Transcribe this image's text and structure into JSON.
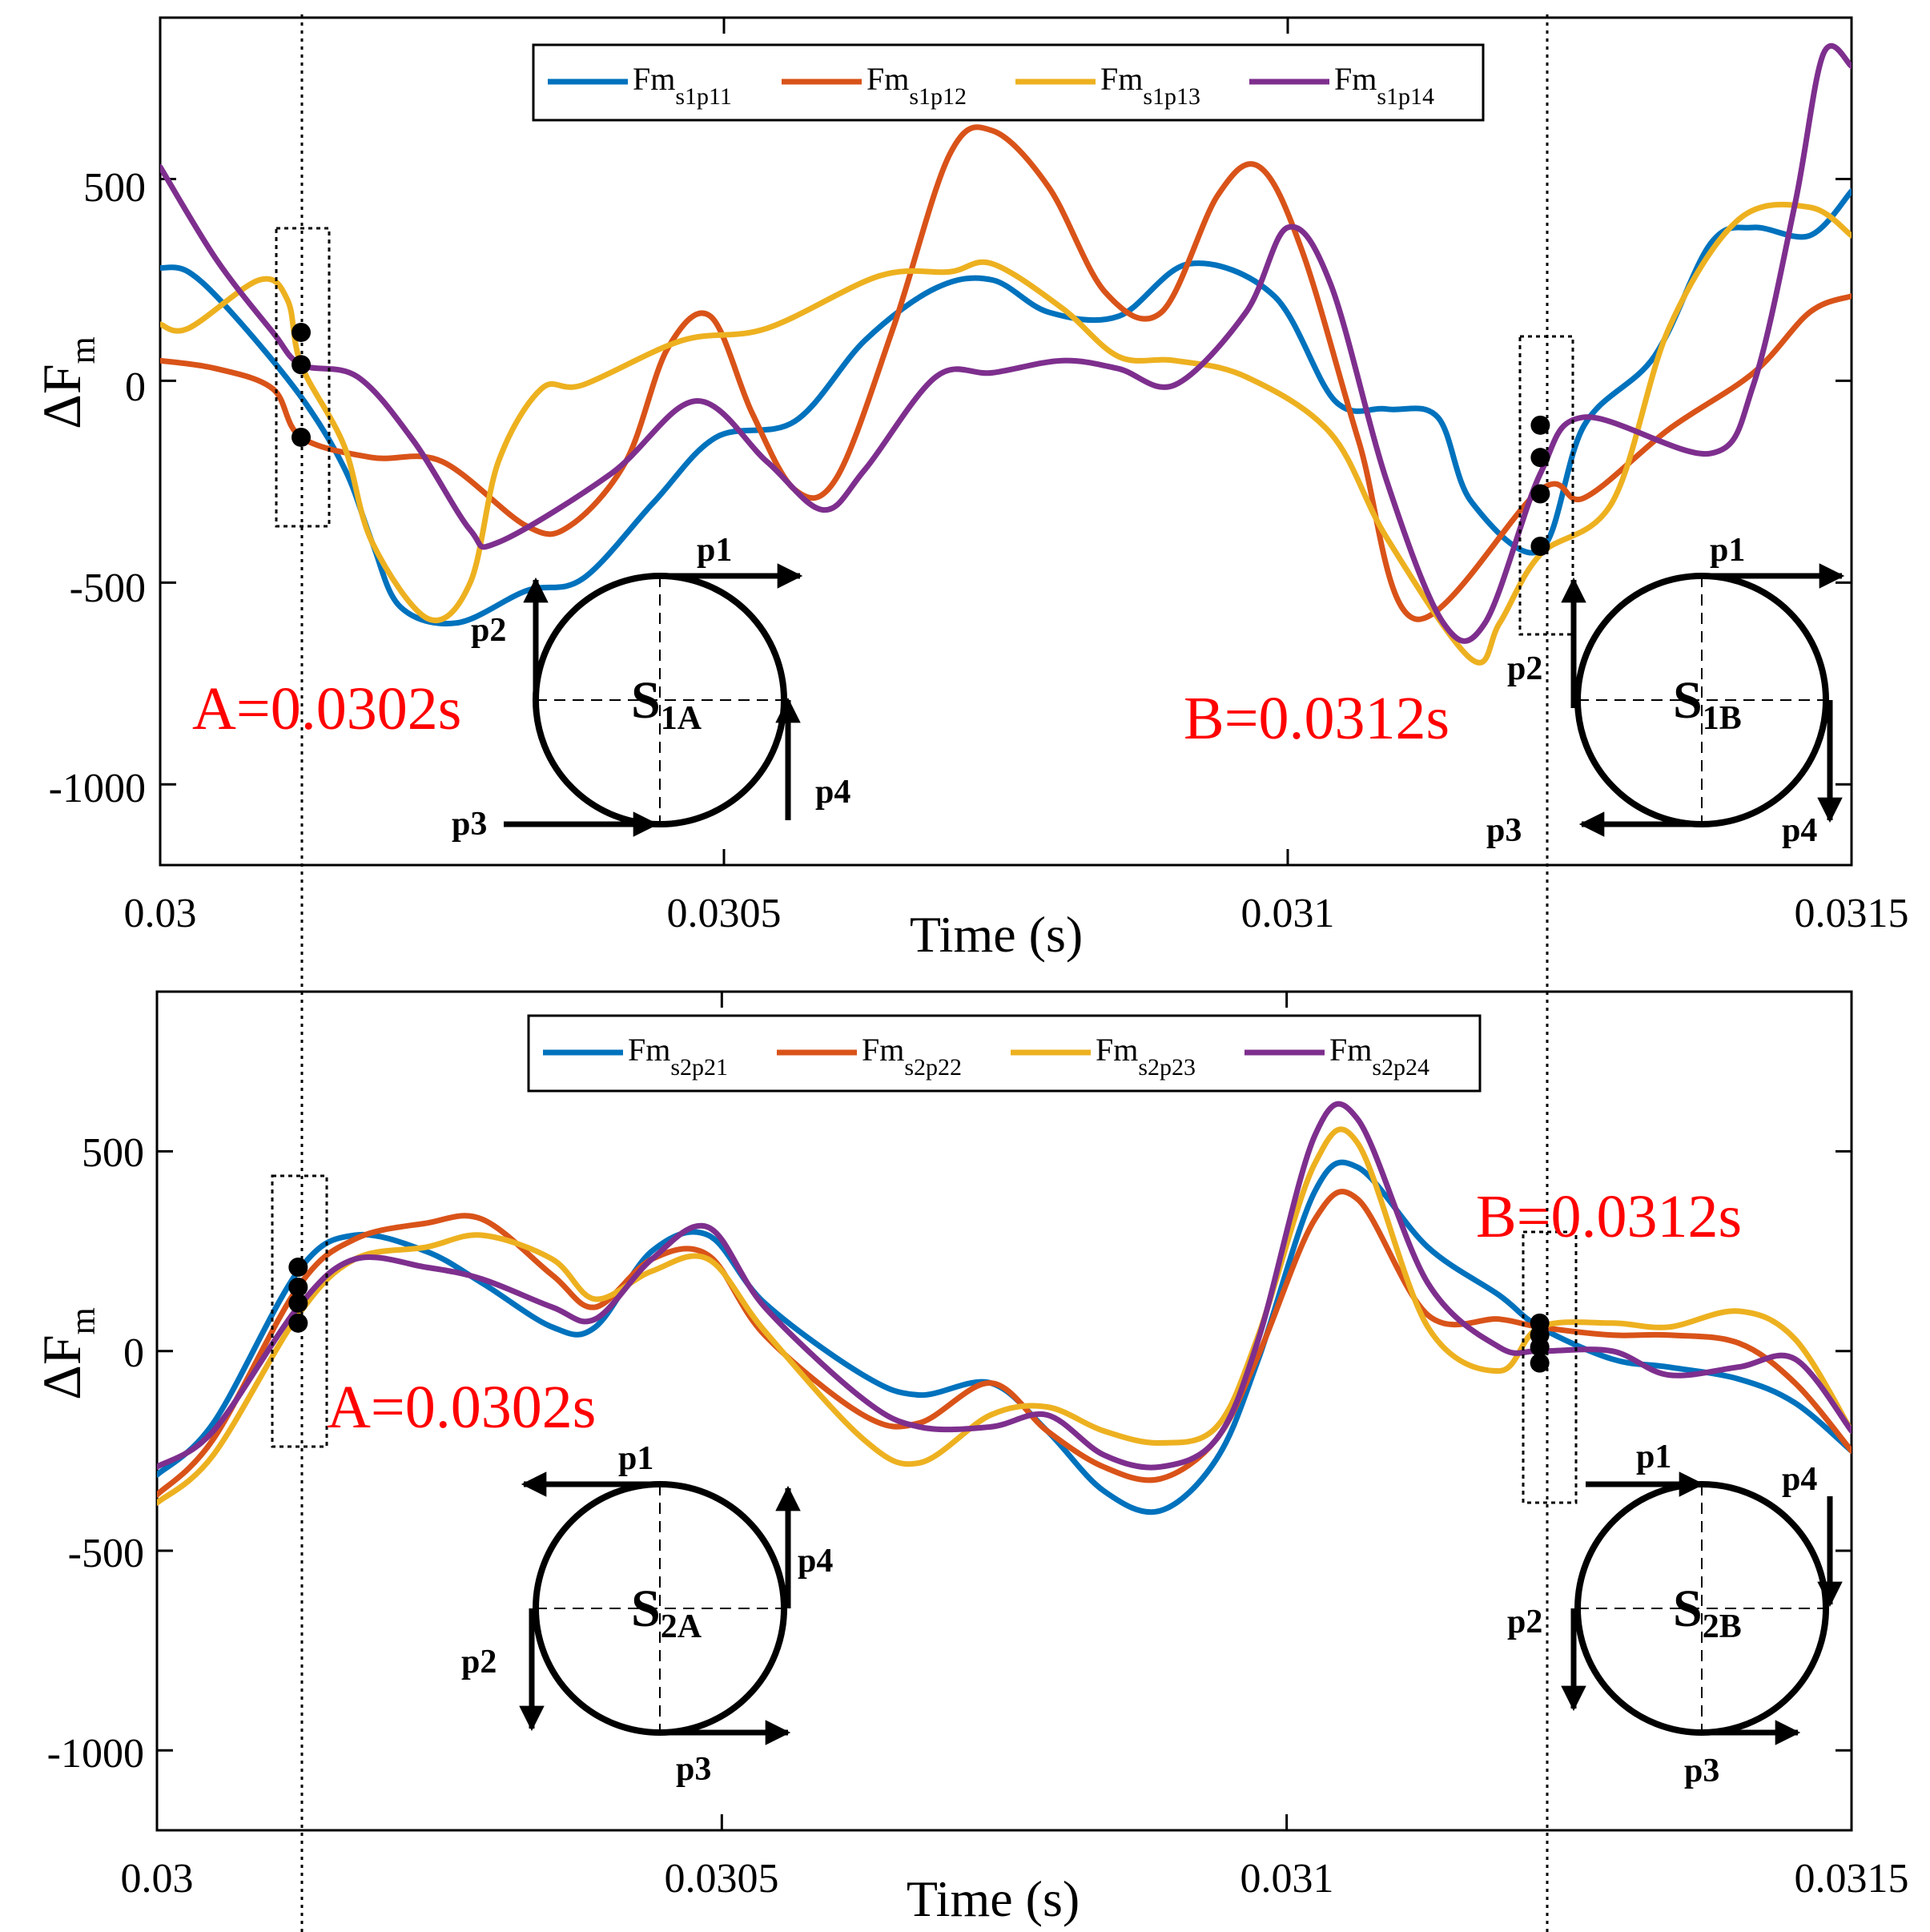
{
  "chart_data": [
    {
      "type": "line",
      "id": "top",
      "xlabel": "Time (s)",
      "ylabel": "ΔF",
      "ylabel_sub": "m",
      "xlim": [
        0.03,
        0.0315
      ],
      "ylim": [
        -1200,
        900
      ],
      "xticks": [
        0.03,
        0.0305,
        0.031,
        0.0315
      ],
      "xtick_labels": [
        "0.03",
        "0.0305",
        "0.031",
        "0.0315"
      ],
      "yticks": [
        500,
        0,
        -500,
        -1000
      ],
      "ytick_labels": [
        "500",
        "0",
        "-500",
        "-1000"
      ],
      "legend_placement": "top-center",
      "series": [
        {
          "name": "Fm",
          "sub": "s1p11",
          "color": "#0072BD",
          "x": [
            0.03,
            0.030025,
            0.030063,
            0.030125,
            0.030164,
            0.030188,
            0.030213,
            0.030263,
            0.030325,
            0.030375,
            0.030438,
            0.030493,
            0.030563,
            0.030625,
            0.030688,
            0.030738,
            0.030788,
            0.03085,
            0.030913,
            0.030988,
            0.031042,
            0.031088,
            0.031133,
            0.031163,
            0.031224,
            0.031263,
            0.031325,
            0.031375,
            0.031413,
            0.031463,
            0.0315
          ],
          "values": [
            280,
            270,
            170,
            -40,
            -220,
            -400,
            -560,
            -600,
            -520,
            -490,
            -300,
            -140,
            -100,
            100,
            230,
            250,
            170,
            160,
            290,
            210,
            -50,
            -70,
            -90,
            -300,
            -420,
            -110,
            60,
            340,
            380,
            360,
            470
          ]
        },
        {
          "name": "Fm",
          "sub": "s1p12",
          "color": "#D95319",
          "x": [
            0.03,
            0.03005,
            0.0301,
            0.030125,
            0.030188,
            0.03025,
            0.030325,
            0.030363,
            0.030413,
            0.03045,
            0.030488,
            0.030525,
            0.030563,
            0.0306,
            0.03065,
            0.0307,
            0.030738,
            0.030788,
            0.030838,
            0.030888,
            0.030938,
            0.030975,
            0.031013,
            0.031063,
            0.031113,
            0.031224,
            0.031263,
            0.031338,
            0.031413,
            0.031463,
            0.0315
          ],
          "values": [
            50,
            30,
            -20,
            -140,
            -190,
            -200,
            -360,
            -360,
            -200,
            80,
            160,
            -80,
            -270,
            -240,
            130,
            560,
            620,
            480,
            220,
            170,
            460,
            530,
            320,
            -150,
            -590,
            -270,
            -290,
            -120,
            20,
            170,
            210
          ]
        },
        {
          "name": "Fm",
          "sub": "s1p13",
          "color": "#EDB120",
          "x": [
            0.03,
            0.030025,
            0.030088,
            0.030113,
            0.030125,
            0.030163,
            0.030188,
            0.030238,
            0.030275,
            0.0303,
            0.030338,
            0.030375,
            0.030463,
            0.030538,
            0.030638,
            0.0307,
            0.030738,
            0.0308,
            0.03085,
            0.0309,
            0.030963,
            0.031038,
            0.031088,
            0.031163,
            0.031188,
            0.031224,
            0.031288,
            0.031338,
            0.0314,
            0.031463,
            0.0315
          ],
          "values": [
            140,
            130,
            250,
            200,
            40,
            -160,
            -400,
            -590,
            -500,
            -200,
            -20,
            -10,
            100,
            130,
            260,
            270,
            290,
            180,
            60,
            50,
            10,
            -130,
            -390,
            -690,
            -600,
            -430,
            -300,
            130,
            400,
            430,
            360
          ]
        },
        {
          "name": "Fm",
          "sub": "s1p14",
          "color": "#7E2F8E",
          "x": [
            0.03,
            0.03005,
            0.0301,
            0.030125,
            0.030175,
            0.030225,
            0.030275,
            0.0303,
            0.0304,
            0.030475,
            0.030538,
            0.030588,
            0.030625,
            0.030688,
            0.030738,
            0.0308,
            0.03085,
            0.0309,
            0.030963,
            0.031,
            0.031038,
            0.031088,
            0.031138,
            0.031175,
            0.031224,
            0.031263,
            0.031375,
            0.031413,
            0.03145,
            0.031475,
            0.0315
          ],
          "values": [
            530,
            300,
            120,
            40,
            10,
            -150,
            -370,
            -400,
            -230,
            -50,
            -200,
            -320,
            -220,
            10,
            20,
            50,
            30,
            -10,
            170,
            380,
            240,
            -250,
            -600,
            -600,
            -230,
            -90,
            -180,
            -10,
            440,
            810,
            780
          ]
        }
      ],
      "markers": [
        {
          "x": 0.030125,
          "values": [
            120,
            40,
            -140
          ]
        },
        {
          "x": 0.031224,
          "values": [
            -110,
            -190,
            -280,
            -410
          ]
        }
      ],
      "annotations": [
        {
          "text": "A=0.0302s"
        },
        {
          "text": "B=0.0312s"
        }
      ],
      "insets": [
        {
          "label": "S",
          "sub": "1A",
          "arrows": [
            "p1",
            "p2",
            "p3",
            "p4"
          ]
        },
        {
          "label": "S",
          "sub": "1B",
          "arrows": [
            "p1",
            "p2",
            "p3",
            "p4"
          ]
        }
      ]
    },
    {
      "type": "line",
      "id": "bottom",
      "xlabel": "Time (s)",
      "ylabel": "ΔF",
      "ylabel_sub": "m",
      "xlim": [
        0.03,
        0.0315
      ],
      "ylim": [
        -1200,
        900
      ],
      "xticks": [
        0.03,
        0.0305,
        0.031,
        0.0315
      ],
      "xtick_labels": [
        "0.03",
        "0.0305",
        "0.031",
        "0.0315"
      ],
      "yticks": [
        500,
        0,
        -500,
        -1000
      ],
      "ytick_labels": [
        "500",
        "0",
        "-500",
        "-1000"
      ],
      "legend_placement": "top-center",
      "series": [
        {
          "name": "Fm",
          "sub": "s2p21",
          "color": "#0072BD",
          "x": [
            0.03,
            0.03005,
            0.030125,
            0.030175,
            0.030238,
            0.030288,
            0.03035,
            0.030388,
            0.030438,
            0.030488,
            0.030538,
            0.030625,
            0.030675,
            0.030738,
            0.030788,
            0.030838,
            0.030888,
            0.030938,
            0.030975,
            0.031025,
            0.031063,
            0.031125,
            0.031188,
            0.031224,
            0.031288,
            0.031338,
            0.0314,
            0.03145,
            0.0315
          ],
          "values": [
            -310,
            -180,
            200,
            290,
            250,
            170,
            60,
            60,
            250,
            290,
            120,
            -60,
            -110,
            -80,
            -200,
            -350,
            -400,
            -270,
            -20,
            400,
            460,
            260,
            140,
            60,
            -20,
            -40,
            -70,
            -130,
            -250
          ]
        },
        {
          "name": "Fm",
          "sub": "s2p22",
          "color": "#D95319",
          "x": [
            0.03,
            0.03005,
            0.030125,
            0.030175,
            0.030238,
            0.030288,
            0.03035,
            0.030388,
            0.030438,
            0.030488,
            0.030538,
            0.030625,
            0.030675,
            0.030738,
            0.030788,
            0.030838,
            0.030888,
            0.030938,
            0.030975,
            0.031025,
            0.031063,
            0.031125,
            0.031188,
            0.031224,
            0.031288,
            0.031338,
            0.0314,
            0.03145,
            0.0315
          ],
          "values": [
            -360,
            -220,
            160,
            280,
            320,
            330,
            190,
            110,
            230,
            240,
            40,
            -160,
            -180,
            -80,
            -200,
            -290,
            -320,
            -220,
            -10,
            330,
            380,
            90,
            80,
            60,
            40,
            40,
            20,
            -80,
            -250
          ]
        },
        {
          "name": "Fm",
          "sub": "s2p23",
          "color": "#EDB120",
          "x": [
            0.03,
            0.03005,
            0.030125,
            0.030175,
            0.030238,
            0.030288,
            0.03035,
            0.030388,
            0.030438,
            0.030488,
            0.030538,
            0.030625,
            0.030675,
            0.030738,
            0.030788,
            0.030838,
            0.030888,
            0.030938,
            0.030975,
            0.031025,
            0.031063,
            0.031125,
            0.031188,
            0.031224,
            0.031288,
            0.031338,
            0.0314,
            0.03145,
            0.0315
          ],
          "values": [
            -380,
            -260,
            90,
            230,
            260,
            290,
            230,
            130,
            200,
            230,
            50,
            -220,
            -280,
            -160,
            -140,
            -200,
            -230,
            -190,
            40,
            470,
            520,
            60,
            -50,
            60,
            70,
            60,
            100,
            30,
            -200
          ]
        },
        {
          "name": "Fm",
          "sub": "s2p24",
          "color": "#7E2F8E",
          "x": [
            0.03,
            0.03005,
            0.030125,
            0.030175,
            0.030238,
            0.030288,
            0.03035,
            0.030388,
            0.030438,
            0.030488,
            0.030538,
            0.030625,
            0.030675,
            0.030738,
            0.030788,
            0.030838,
            0.030888,
            0.030938,
            0.030975,
            0.031025,
            0.031063,
            0.031125,
            0.031188,
            0.031224,
            0.031288,
            0.031338,
            0.0314,
            0.03145,
            0.0315
          ],
          "values": [
            -290,
            -200,
            110,
            230,
            210,
            180,
            110,
            80,
            230,
            310,
            110,
            -120,
            -190,
            -190,
            -160,
            -260,
            -290,
            -220,
            30,
            540,
            580,
            170,
            10,
            0,
            0,
            -60,
            -40,
            -20,
            -200
          ]
        }
      ],
      "markers": [
        {
          "x": 0.030125,
          "values": [
            210,
            160,
            120,
            70
          ]
        },
        {
          "x": 0.031224,
          "values": [
            70,
            40,
            10,
            -30
          ]
        }
      ],
      "annotations": [
        {
          "text": "A=0.0302s"
        },
        {
          "text": "B=0.0312s"
        }
      ],
      "insets": [
        {
          "label": "S",
          "sub": "2A",
          "arrows": [
            "p1",
            "p2",
            "p3",
            "p4"
          ]
        },
        {
          "label": "S",
          "sub": "2B",
          "arrows": [
            "p1",
            "p2",
            "p3",
            "p4"
          ]
        }
      ]
    }
  ]
}
